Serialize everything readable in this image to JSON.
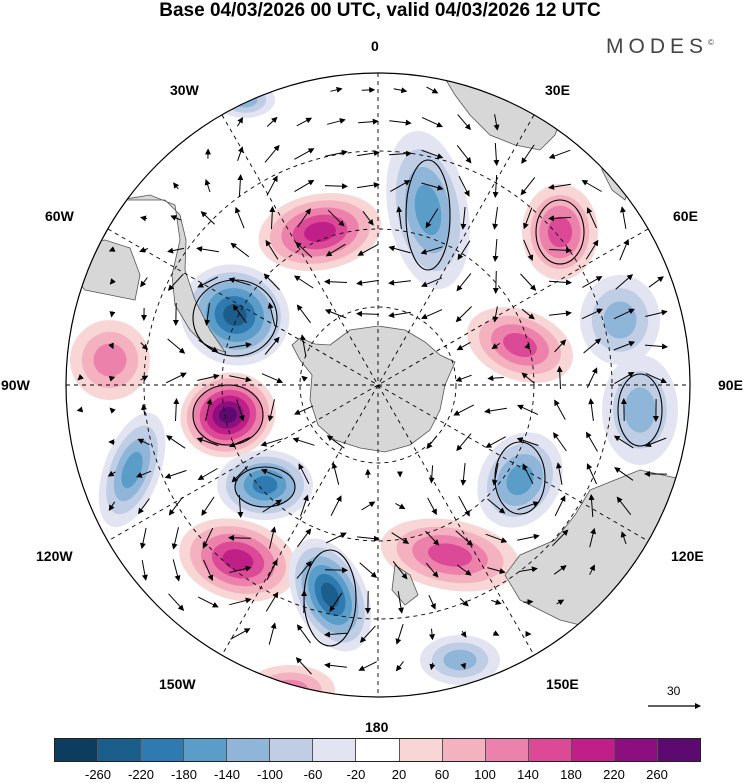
{
  "title": "Base 04/03/2026 00 UTC, valid 04/03/2026 12 UTC",
  "brand": {
    "name": "MODES",
    "mark": "©"
  },
  "longitude_labels": {
    "lon_0": "0",
    "lon_30e": "30E",
    "lon_60e": "60E",
    "lon_90e": "90E",
    "lon_120e": "120E",
    "lon_150e": "150E",
    "lon_180": "180",
    "lon_150w": "150W",
    "lon_120w": "120W",
    "lon_90w": "90W",
    "lon_60w": "60W",
    "lon_30w": "30W"
  },
  "reference_vector": {
    "label": "30"
  },
  "colorbar": {
    "ticks": [
      "-260",
      "-220",
      "-180",
      "-140",
      "-100",
      "-60",
      "-20",
      "20",
      "60",
      "100",
      "140",
      "180",
      "220",
      "260"
    ],
    "colors": [
      "#0d3d5e",
      "#1b5e8c",
      "#2f7bb1",
      "#5a9dc9",
      "#8fb6d8",
      "#bfcde5",
      "#e3e4f1",
      "#ffffff",
      "#f9d6d6",
      "#f4b1bf",
      "#ec82ab",
      "#dc4a97",
      "#bf1f86",
      "#8d0f7f",
      "#5c0a70"
    ]
  },
  "colors": {
    "land": "#d7d7d7",
    "coast": "#555555",
    "grid": "#000000"
  }
}
